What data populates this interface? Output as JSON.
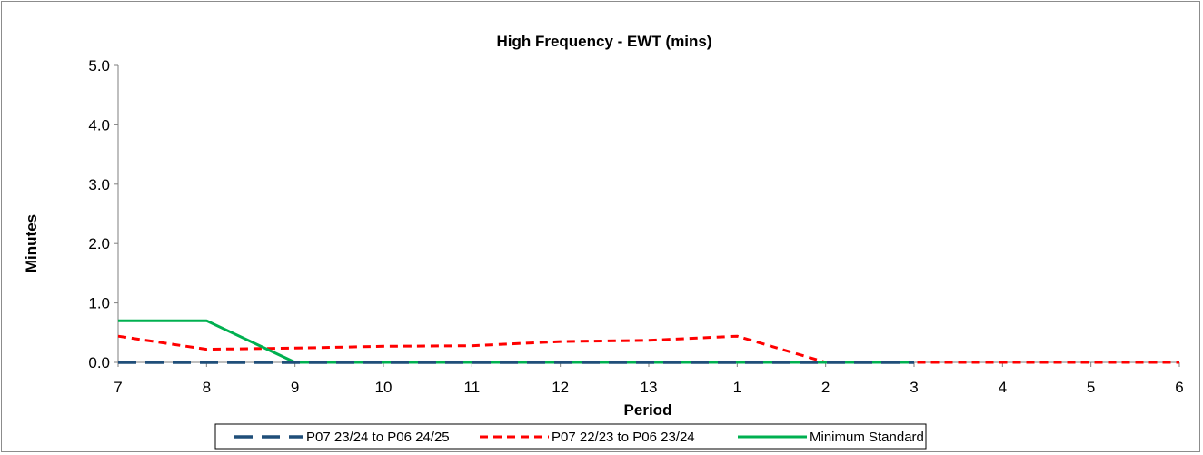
{
  "chart_data": {
    "type": "line",
    "title": "High Frequency - EWT (mins)",
    "xlabel": "Period",
    "ylabel": "Minutes",
    "categories": [
      "7",
      "8",
      "9",
      "10",
      "11",
      "12",
      "13",
      "1",
      "2",
      "3",
      "4",
      "5",
      "6"
    ],
    "ylim": [
      0,
      5
    ],
    "yticks": [
      "0.0",
      "1.0",
      "2.0",
      "3.0",
      "4.0",
      "5.0"
    ],
    "grid": false,
    "legend_position": "bottom",
    "series": [
      {
        "name": "P07 23/24 to P06 24/25",
        "color": "#1f4e79",
        "style": "long-dash",
        "values": [
          0,
          0,
          0,
          0,
          0,
          0,
          0,
          0,
          0,
          0,
          null,
          null,
          null
        ]
      },
      {
        "name": "P07 22/23 to P06 23/24",
        "color": "#ff0000",
        "style": "short-dash",
        "values": [
          0.44,
          0.22,
          0.24,
          0.27,
          0.28,
          0.35,
          0.37,
          0.44,
          0,
          0,
          0,
          0,
          0
        ]
      },
      {
        "name": "Minimum Standard",
        "color": "#00b050",
        "style": "solid",
        "values": [
          0.7,
          0.7,
          0,
          0,
          0,
          0,
          0,
          0,
          0,
          0,
          null,
          null,
          null
        ]
      }
    ]
  }
}
